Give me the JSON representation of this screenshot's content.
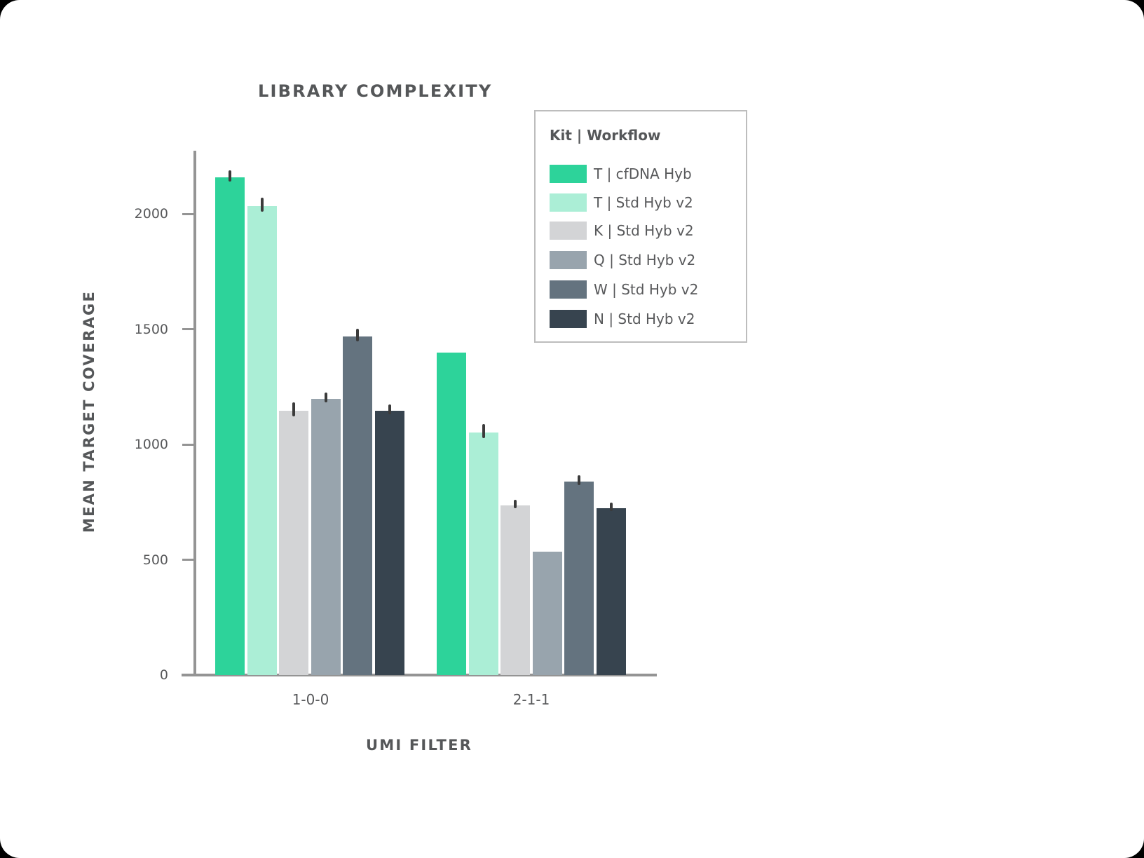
{
  "chart_data": {
    "type": "bar",
    "title": "LIBRARY COMPLEXITY",
    "xlabel": "UMI FILTER",
    "ylabel": "MEAN TARGET COVERAGE",
    "categories": [
      "1-0-0",
      "2-1-1"
    ],
    "ylim": [
      0,
      2300
    ],
    "yticks": [
      0,
      500,
      1000,
      1500,
      2000
    ],
    "grid": false,
    "legend_title": "Kit | Workflow",
    "legend_position": "upper right",
    "series": [
      {
        "name": "T | cfDNA Hyb",
        "color": "#2DD39A",
        "values": [
          2158,
          1398
        ],
        "errors": [
          18,
          0
        ]
      },
      {
        "name": "T | Std Hyb v2",
        "color": "#ABEED6",
        "values": [
          2033,
          1052
        ],
        "errors": [
          24,
          25
        ]
      },
      {
        "name": "K | Std Hyb v2",
        "color": "#D3D4D6",
        "values": [
          1146,
          736
        ],
        "errors": [
          25,
          12
        ]
      },
      {
        "name": "Q | Std Hyb v2",
        "color": "#98A4AD",
        "values": [
          1198,
          535
        ],
        "errors": [
          15,
          0
        ]
      },
      {
        "name": "W | Std Hyb v2",
        "color": "#64737F",
        "values": [
          1468,
          839
        ],
        "errors": [
          20,
          15
        ]
      },
      {
        "name": "N | Std Hyb v2",
        "color": "#37444F",
        "values": [
          1146,
          723
        ],
        "errors": [
          15,
          12
        ]
      }
    ]
  },
  "labels": {
    "title": "LIBRARY COMPLEXITY",
    "ylabel": "MEAN TARGET COVERAGE",
    "xlabel": "UMI FILTER",
    "legend_title": "Kit | Workflow",
    "yticks": [
      "0",
      "500",
      "1000",
      "1500",
      "2000"
    ],
    "categories": [
      "1-0-0",
      "2-1-1"
    ]
  }
}
